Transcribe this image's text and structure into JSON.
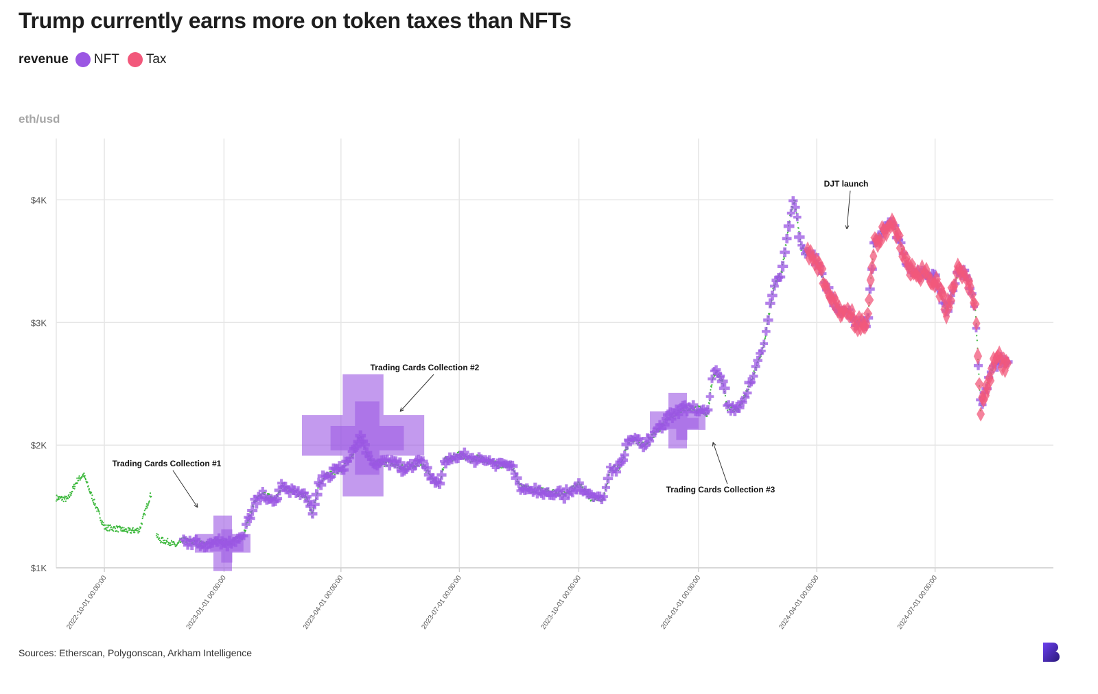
{
  "header": {
    "title": "Trump currently earns more on token taxes than NFTs",
    "legend_label": "revenue"
  },
  "legend": [
    {
      "name": "NFT",
      "color": "#9b57e3"
    },
    {
      "name": "Tax",
      "color": "#f2587b"
    }
  ],
  "footer": {
    "source": "Sources: Etherscan, Polygonscan, Arkham Intelligence",
    "logo_icon": "brand-b-logo-icon"
  },
  "chart_data": {
    "type": "scatter",
    "title": "Trump currently earns more on token taxes than NFTs",
    "ylabel": "eth/usd",
    "xlabel": "",
    "xlim": [
      "2022-08-25",
      "2024-09-30"
    ],
    "ylim": [
      1000,
      4500
    ],
    "grid": true,
    "legend_position": "top-left",
    "y_ticks": [
      {
        "value": 1000,
        "label": "$1K"
      },
      {
        "value": 2000,
        "label": "$2K"
      },
      {
        "value": 3000,
        "label": "$3K"
      },
      {
        "value": 4000,
        "label": "$4K"
      }
    ],
    "x_ticks": [
      {
        "date": "2022-10-01",
        "label": "2022-10-01 00:00:00"
      },
      {
        "date": "2023-01-01",
        "label": "2023-01-01 00:00:00"
      },
      {
        "date": "2023-04-01",
        "label": "2023-04-01 00:00:00"
      },
      {
        "date": "2023-07-01",
        "label": "2023-07-01 00:00:00"
      },
      {
        "date": "2023-10-01",
        "label": "2023-10-01 00:00:00"
      },
      {
        "date": "2024-01-01",
        "label": "2024-01-01 00:00:00"
      },
      {
        "date": "2024-04-01",
        "label": "2024-04-01 00:00:00"
      },
      {
        "date": "2024-07-01",
        "label": "2024-07-01 00:00:00"
      }
    ],
    "price_line": {
      "color": "#3cb83c",
      "x": [
        "2022-08-25",
        "2022-09-03",
        "2022-09-10",
        "2022-09-15",
        "2022-09-20",
        "2022-10-01",
        "2022-10-10",
        "2022-10-20",
        "2022-10-28",
        "2022-11-05",
        "2022-11-07",
        "2022-11-08",
        "2022-11-09",
        "2022-11-12",
        "2022-11-20",
        "2022-11-25",
        "2022-12-01",
        "2022-12-10",
        "2022-12-20",
        "2022-12-25",
        "2023-01-01",
        "2023-01-08",
        "2023-01-15",
        "2023-01-20",
        "2023-01-25",
        "2023-02-01",
        "2023-02-10",
        "2023-02-15",
        "2023-02-20",
        "2023-02-28",
        "2023-03-05",
        "2023-03-10",
        "2023-03-15",
        "2023-03-20",
        "2023-03-25",
        "2023-04-01",
        "2023-04-10",
        "2023-04-15",
        "2023-04-20",
        "2023-04-25",
        "2023-05-01",
        "2023-05-10",
        "2023-05-20",
        "2023-06-01",
        "2023-06-10",
        "2023-06-15",
        "2023-06-20",
        "2023-06-25",
        "2023-07-01",
        "2023-07-10",
        "2023-07-15",
        "2023-07-20",
        "2023-08-01",
        "2023-08-10",
        "2023-08-17",
        "2023-08-25",
        "2023-09-01",
        "2023-09-10",
        "2023-09-20",
        "2023-10-01",
        "2023-10-10",
        "2023-10-20",
        "2023-10-25",
        "2023-11-01",
        "2023-11-10",
        "2023-11-20",
        "2023-12-01",
        "2023-12-10",
        "2023-12-20",
        "2024-01-01",
        "2024-01-08",
        "2024-01-12",
        "2024-01-15",
        "2024-01-20",
        "2024-01-23",
        "2024-02-01",
        "2024-02-10",
        "2024-02-20",
        "2024-02-28",
        "2024-03-05",
        "2024-03-12",
        "2024-03-15",
        "2024-03-20",
        "2024-03-27",
        "2024-04-01",
        "2024-04-08",
        "2024-04-13",
        "2024-04-18",
        "2024-04-25",
        "2024-05-01",
        "2024-05-10",
        "2024-05-15",
        "2024-05-22",
        "2024-05-27",
        "2024-06-01",
        "2024-06-10",
        "2024-06-20",
        "2024-06-25",
        "2024-07-01",
        "2024-07-10",
        "2024-07-20",
        "2024-07-28",
        "2024-08-01",
        "2024-08-05",
        "2024-08-10",
        "2024-08-15",
        "2024-08-20",
        "2024-08-25"
      ],
      "y": [
        1570,
        1560,
        1710,
        1760,
        1620,
        1330,
        1320,
        1300,
        1310,
        1580,
        1620,
        1560,
        1300,
        1230,
        1210,
        1180,
        1230,
        1200,
        1190,
        1220,
        1200,
        1220,
        1250,
        1400,
        1550,
        1600,
        1560,
        1680,
        1640,
        1600,
        1580,
        1430,
        1680,
        1740,
        1780,
        1800,
        1920,
        2080,
        1970,
        1850,
        1850,
        1860,
        1810,
        1860,
        1740,
        1670,
        1880,
        1890,
        1930,
        1880,
        1900,
        1880,
        1840,
        1840,
        1660,
        1640,
        1630,
        1620,
        1600,
        1680,
        1570,
        1560,
        1800,
        1820,
        2060,
        2000,
        2120,
        2230,
        2300,
        2300,
        2250,
        2560,
        2600,
        2500,
        2300,
        2300,
        2500,
        2800,
        3300,
        3400,
        3900,
        4000,
        3600,
        3550,
        3500,
        3300,
        3200,
        3100,
        3100,
        3000,
        3000,
        3650,
        3750,
        3800,
        3750,
        3450,
        3400,
        3400,
        3350,
        3100,
        3450,
        3300,
        3100,
        2300,
        2500,
        2650,
        2700,
        2650
      ]
    },
    "series": [
      {
        "name": "NFT",
        "color": "#9b57e3",
        "marker": "plus",
        "note_sizes": "marker size proportional to revenue"
      },
      {
        "name": "Tax",
        "color": "#f2587b",
        "marker": "diamond"
      }
    ],
    "nft_large_points": [
      {
        "x": "2022-12-31",
        "y": 1200,
        "revenue_scale": 1.0
      },
      {
        "x": "2023-04-18",
        "y": 2080,
        "revenue_scale": 2.2
      },
      {
        "x": "2023-12-16",
        "y": 2200,
        "revenue_scale": 1.0
      }
    ],
    "tax_x_range": [
      "2024-03-25",
      "2024-09-01"
    ],
    "annotations": [
      {
        "text": "Trading Cards Collection #1",
        "x": "2023-01-01",
        "y": 1480
      },
      {
        "text": "Trading Cards Collection #2",
        "x": "2023-05-09",
        "y": 2270
      },
      {
        "text": "Trading Cards Collection #3",
        "x": "2023-12-25",
        "y": 2020
      },
      {
        "text": "DJT launch",
        "x": "2024-04-01",
        "y": 3750
      }
    ]
  }
}
